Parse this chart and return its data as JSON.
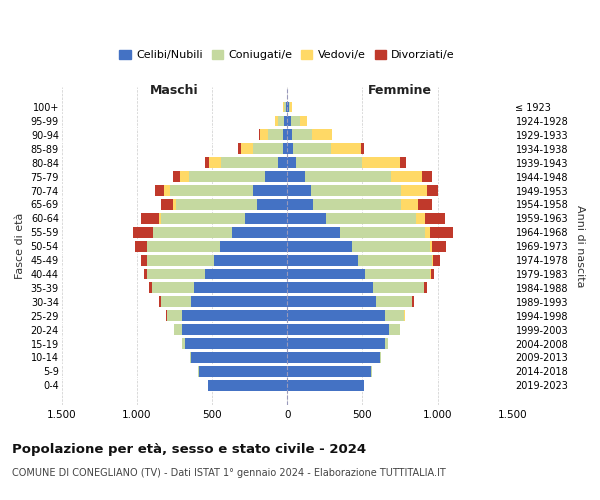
{
  "age_groups": [
    "0-4",
    "5-9",
    "10-14",
    "15-19",
    "20-24",
    "25-29",
    "30-34",
    "35-39",
    "40-44",
    "45-49",
    "50-54",
    "55-59",
    "60-64",
    "65-69",
    "70-74",
    "75-79",
    "80-84",
    "85-89",
    "90-94",
    "95-99",
    "100+"
  ],
  "birth_years": [
    "2019-2023",
    "2014-2018",
    "2009-2013",
    "2004-2008",
    "1999-2003",
    "1994-1998",
    "1989-1993",
    "1984-1988",
    "1979-1983",
    "1974-1978",
    "1969-1973",
    "1964-1968",
    "1959-1963",
    "1954-1958",
    "1949-1953",
    "1944-1948",
    "1939-1943",
    "1934-1938",
    "1929-1933",
    "1924-1928",
    "≤ 1923"
  ],
  "males": {
    "celibi": [
      530,
      590,
      640,
      680,
      700,
      700,
      640,
      620,
      550,
      490,
      450,
      370,
      280,
      200,
      230,
      150,
      60,
      30,
      30,
      20,
      10
    ],
    "coniugati": [
      0,
      2,
      5,
      20,
      50,
      100,
      200,
      280,
      380,
      440,
      480,
      520,
      560,
      540,
      550,
      500,
      380,
      200,
      100,
      40,
      10
    ],
    "vedovi": [
      0,
      0,
      0,
      0,
      0,
      1,
      1,
      1,
      1,
      2,
      3,
      5,
      10,
      20,
      40,
      60,
      80,
      80,
      50,
      20,
      5
    ],
    "divorziati": [
      0,
      0,
      0,
      0,
      3,
      5,
      10,
      15,
      20,
      40,
      80,
      130,
      120,
      80,
      60,
      50,
      30,
      20,
      5,
      0,
      0
    ]
  },
  "females": {
    "nubili": [
      510,
      560,
      620,
      650,
      680,
      650,
      590,
      570,
      520,
      470,
      430,
      350,
      260,
      170,
      160,
      120,
      60,
      40,
      35,
      25,
      10
    ],
    "coniugate": [
      0,
      2,
      5,
      20,
      70,
      130,
      240,
      340,
      430,
      490,
      520,
      570,
      600,
      590,
      600,
      570,
      440,
      250,
      130,
      60,
      10
    ],
    "vedove": [
      0,
      0,
      0,
      0,
      0,
      1,
      2,
      2,
      4,
      8,
      15,
      30,
      60,
      110,
      170,
      210,
      250,
      200,
      130,
      50,
      10
    ],
    "divorziate": [
      0,
      0,
      0,
      0,
      3,
      5,
      10,
      15,
      25,
      50,
      90,
      150,
      130,
      90,
      70,
      60,
      40,
      20,
      5,
      0,
      0
    ]
  },
  "colors": {
    "celibi_nubili": "#4472C4",
    "coniugati": "#C5D9A0",
    "vedovi": "#FFD966",
    "divorziati": "#C0392B"
  },
  "xlim": 1500,
  "xticks": [
    -1500,
    -1000,
    -500,
    0,
    500,
    1000,
    1500
  ],
  "xticklabels": [
    "1.500",
    "1.000",
    "500",
    "0",
    "500",
    "1.000",
    "1.500"
  ],
  "title": "Popolazione per età, sesso e stato civile - 2024",
  "subtitle": "COMUNE DI CONEGLIANO (TV) - Dati ISTAT 1° gennaio 2024 - Elaborazione TUTTITALIA.IT",
  "ylabel": "Fasce di età",
  "ylabel_right": "Anni di nascita",
  "label_maschi": "Maschi",
  "label_femmine": "Femmine",
  "legend_labels": [
    "Celibi/Nubili",
    "Coniugati/e",
    "Vedovi/e",
    "Divorziati/e"
  ],
  "bg_color": "#ffffff",
  "grid_color": "#cccccc"
}
